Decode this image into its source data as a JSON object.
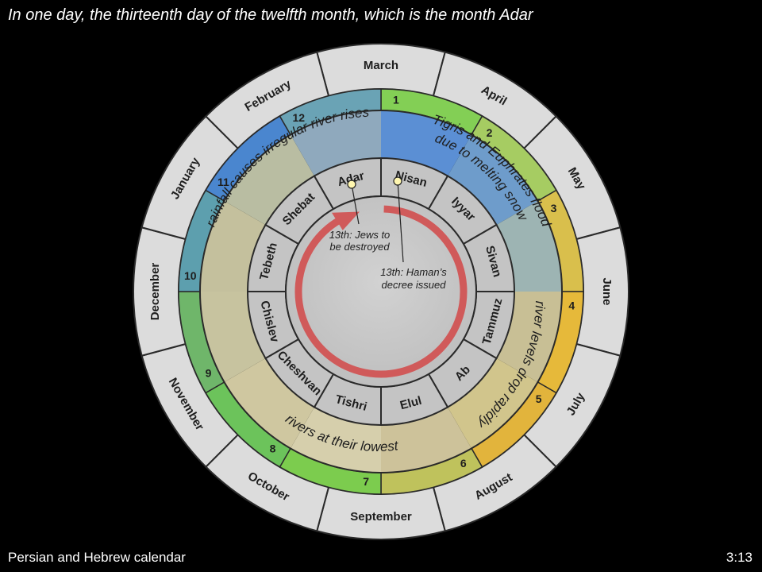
{
  "slide": {
    "title": "In one day, the thirteenth day of the twelfth month, which is the month Adar",
    "footer_left": "Persian and Hebrew calendar",
    "footer_right": "3:13"
  },
  "outer_months": [
    "March",
    "April",
    "May",
    "June",
    "July",
    "August",
    "September",
    "October",
    "November",
    "December",
    "January",
    "February"
  ],
  "persian_numbers": [
    "1",
    "2",
    "3",
    "4",
    "5",
    "6",
    "7",
    "8",
    "9",
    "10",
    "11",
    "12"
  ],
  "hebrew_months": [
    "Nisan",
    "Iyyar",
    "Sivan",
    "Tammuz",
    "Ab",
    "Elul",
    "Tishri",
    "Cheshvan",
    "Chislev",
    "Tebeth",
    "Shebat",
    "Adar"
  ],
  "seasons": {
    "flood": [
      "Tigris and Euphrates flood",
      "due to melting snow"
    ],
    "drop": "river levels drop rapidly",
    "lowest": "rivers at their lowest",
    "rainfall": "rainfall causes irregular river rises"
  },
  "events": {
    "adar": [
      "13th: Jews to",
      "be destroyed"
    ],
    "nisan": [
      "13th: Haman’s",
      "decree issued"
    ]
  },
  "colors": {
    "background": "#000000",
    "outer_ring": "#dcdcdc",
    "ring_border": "#2a2a2a",
    "spring_green": "#7ccc4e",
    "summer_gold": "#e6b93a",
    "winter_blue": "#4a86cf",
    "season_tan": "#c9c29a",
    "hebrew_ring": "#c4c4c4",
    "center": "#cbcbcb",
    "arrow": "#d05a5a",
    "marker": "#fff7b0"
  }
}
